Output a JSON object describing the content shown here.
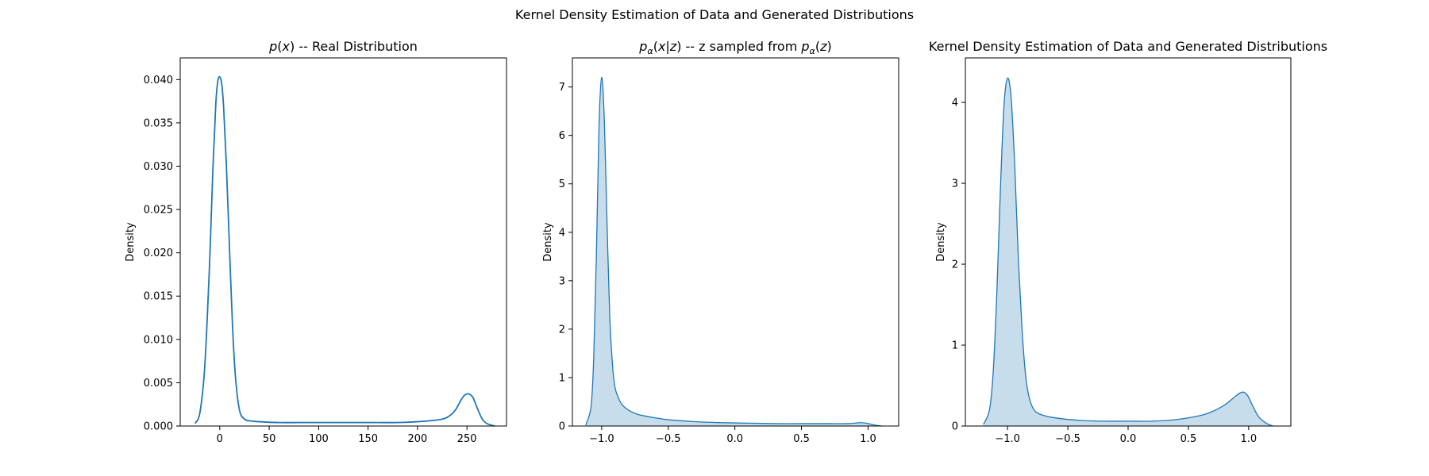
{
  "figure": {
    "title": "Kernel Density Estimation of Data and Generated Distributions"
  },
  "chart_data": [
    {
      "type": "area",
      "filled": false,
      "title_parts": [
        {
          "t": "p",
          "style": "italic"
        },
        {
          "t": "(",
          "style": "normal"
        },
        {
          "t": "x",
          "style": "italic"
        },
        {
          "t": ") -- Real Distribution",
          "style": "normal"
        }
      ],
      "title_text": "p(x) -- Real Distribution",
      "ylabel": "Density",
      "xlim": [
        -40,
        290
      ],
      "ylim": [
        0,
        0.0425
      ],
      "xticks": [
        0,
        50,
        100,
        150,
        200,
        250
      ],
      "xtick_labels": [
        "0",
        "50",
        "100",
        "150",
        "200",
        "250"
      ],
      "yticks": [
        0,
        0.005,
        0.01,
        0.015,
        0.02,
        0.025,
        0.03,
        0.035,
        0.04
      ],
      "ytick_labels": [
        "0.000",
        "0.005",
        "0.010",
        "0.015",
        "0.020",
        "0.025",
        "0.030",
        "0.035",
        "0.040"
      ],
      "color": "#1f77b4",
      "x": [
        -25,
        -20,
        -15,
        -10,
        -7,
        -4,
        -2,
        0,
        2,
        4,
        7,
        10,
        13,
        16,
        20,
        25,
        30,
        40,
        60,
        80,
        100,
        120,
        140,
        160,
        180,
        200,
        220,
        230,
        238,
        244,
        248,
        252,
        256,
        260,
        265,
        270,
        278
      ],
      "y": [
        0.0003,
        0.0016,
        0.0072,
        0.0196,
        0.0295,
        0.0372,
        0.0398,
        0.0403,
        0.0395,
        0.0366,
        0.0292,
        0.02,
        0.0113,
        0.0055,
        0.0018,
        0.0008,
        0.0006,
        0.0005,
        0.0004,
        0.0004,
        0.0004,
        0.0004,
        0.0004,
        0.0004,
        0.0004,
        0.0005,
        0.0007,
        0.001,
        0.0018,
        0.003,
        0.0036,
        0.0037,
        0.0033,
        0.0022,
        0.0009,
        0.0003,
        0.0
      ]
    },
    {
      "type": "area",
      "filled": true,
      "title_parts": [
        {
          "t": "p",
          "style": "italic"
        },
        {
          "t": "α",
          "style": "sub"
        },
        {
          "t": "(",
          "style": "normal"
        },
        {
          "t": "x",
          "style": "italic"
        },
        {
          "t": "|",
          "style": "normal"
        },
        {
          "t": "z",
          "style": "italic"
        },
        {
          "t": ") -- z sampled from ",
          "style": "normal"
        },
        {
          "t": "p",
          "style": "italic"
        },
        {
          "t": "α",
          "style": "sub"
        },
        {
          "t": "(",
          "style": "normal"
        },
        {
          "t": "z",
          "style": "italic"
        },
        {
          "t": ")",
          "style": "normal"
        }
      ],
      "title_text": "pα(x|z) -- z sampled from pα(z)",
      "ylabel": "Density",
      "xlim": [
        -1.22,
        1.23
      ],
      "ylim": [
        0,
        7.6
      ],
      "xticks": [
        -1.0,
        -0.5,
        0.0,
        0.5,
        1.0
      ],
      "xtick_labels": [
        "−1.0",
        "−0.5",
        "0.0",
        "0.5",
        "1.0"
      ],
      "yticks": [
        0,
        1,
        2,
        3,
        4,
        5,
        6,
        7
      ],
      "ytick_labels": [
        "0",
        "1",
        "2",
        "3",
        "4",
        "5",
        "6",
        "7"
      ],
      "color": "#1f77b4",
      "x": [
        -1.12,
        -1.08,
        -1.06,
        -1.04,
        -1.02,
        -1.0,
        -0.98,
        -0.96,
        -0.94,
        -0.92,
        -0.9,
        -0.87,
        -0.84,
        -0.8,
        -0.75,
        -0.7,
        -0.6,
        -0.5,
        -0.3,
        -0.1,
        0.1,
        0.3,
        0.5,
        0.7,
        0.85,
        0.95,
        1.0,
        1.05,
        1.1
      ],
      "y": [
        0.02,
        0.4,
        1.4,
        3.5,
        6.2,
        7.2,
        6.3,
        4.2,
        2.3,
        1.3,
        0.8,
        0.55,
        0.42,
        0.33,
        0.26,
        0.22,
        0.17,
        0.13,
        0.09,
        0.07,
        0.06,
        0.05,
        0.05,
        0.05,
        0.05,
        0.07,
        0.05,
        0.02,
        0.0
      ]
    },
    {
      "type": "area",
      "filled": true,
      "title_text": "Kernel Density Estimation of Data and Generated Distributions",
      "ylabel": "Density",
      "xlim": [
        -1.35,
        1.35
      ],
      "ylim": [
        0,
        4.55
      ],
      "xticks": [
        -1.0,
        -0.5,
        0.0,
        0.5,
        1.0
      ],
      "xtick_labels": [
        "−1.0",
        "−0.5",
        "0.0",
        "0.5",
        "1.0"
      ],
      "yticks": [
        0,
        1,
        2,
        3,
        4
      ],
      "ytick_labels": [
        "0",
        "1",
        "2",
        "3",
        "4"
      ],
      "color": "#1f77b4",
      "x": [
        -1.2,
        -1.15,
        -1.12,
        -1.09,
        -1.06,
        -1.03,
        -1.0,
        -0.97,
        -0.94,
        -0.91,
        -0.88,
        -0.85,
        -0.82,
        -0.78,
        -0.72,
        -0.6,
        -0.4,
        -0.2,
        0.0,
        0.2,
        0.4,
        0.6,
        0.7,
        0.8,
        0.86,
        0.9,
        0.95,
        0.99,
        1.03,
        1.08,
        1.14,
        1.2
      ],
      "y": [
        0.02,
        0.2,
        0.65,
        1.6,
        2.9,
        3.95,
        4.3,
        4.05,
        3.2,
        2.05,
        1.2,
        0.62,
        0.35,
        0.2,
        0.14,
        0.1,
        0.07,
        0.06,
        0.06,
        0.06,
        0.08,
        0.13,
        0.18,
        0.26,
        0.33,
        0.38,
        0.42,
        0.38,
        0.26,
        0.12,
        0.04,
        0.0
      ]
    }
  ]
}
